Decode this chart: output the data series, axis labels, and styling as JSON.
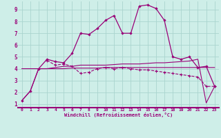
{
  "xlabel": "Windchill (Refroidissement éolien,°C)",
  "bg_color": "#ceeee8",
  "grid_color": "#aad4ce",
  "line_color": "#990077",
  "xlim": [
    -0.5,
    23.5
  ],
  "ylim": [
    0.7,
    9.7
  ],
  "xticks": [
    0,
    1,
    2,
    3,
    4,
    5,
    6,
    7,
    8,
    9,
    10,
    11,
    12,
    13,
    14,
    15,
    16,
    17,
    18,
    19,
    20,
    21,
    22,
    23
  ],
  "yticks": [
    1,
    2,
    3,
    4,
    5,
    6,
    7,
    8,
    9
  ],
  "curve_main_x": [
    0,
    1,
    2,
    3,
    4,
    5,
    6,
    7,
    8,
    9,
    10,
    11,
    12,
    13,
    14,
    15,
    16,
    17,
    18,
    19,
    20,
    21,
    22,
    23
  ],
  "curve_main_y": [
    1.3,
    2.1,
    4.0,
    4.8,
    4.6,
    4.5,
    5.3,
    7.0,
    6.9,
    7.4,
    8.1,
    8.5,
    7.0,
    7.0,
    9.3,
    9.4,
    9.1,
    8.1,
    5.0,
    4.8,
    5.0,
    4.1,
    4.2,
    2.5
  ],
  "curve_flat_x": [
    0,
    1,
    2,
    3,
    4,
    5,
    6,
    7,
    8,
    9,
    10,
    11,
    12,
    13,
    14,
    15,
    16,
    17,
    18,
    19,
    20,
    21,
    22,
    23
  ],
  "curve_flat_y": [
    4.0,
    4.0,
    4.0,
    4.0,
    4.0,
    4.0,
    4.05,
    4.05,
    4.05,
    4.05,
    4.1,
    4.1,
    4.1,
    4.1,
    4.1,
    4.1,
    4.1,
    4.1,
    4.1,
    4.1,
    4.1,
    4.1,
    4.1,
    4.1
  ],
  "curve_rise_x": [
    0,
    1,
    2,
    3,
    4,
    5,
    6,
    7,
    8,
    9,
    10,
    11,
    12,
    13,
    14,
    15,
    16,
    17,
    18,
    19,
    20,
    21,
    22,
    23
  ],
  "curve_rise_y": [
    1.3,
    2.1,
    4.0,
    4.0,
    4.1,
    4.2,
    4.2,
    4.3,
    4.3,
    4.3,
    4.3,
    4.35,
    4.4,
    4.4,
    4.4,
    4.45,
    4.5,
    4.5,
    4.55,
    4.6,
    4.65,
    4.8,
    1.1,
    2.5
  ],
  "curve_decline_x": [
    3,
    4,
    5,
    6,
    7,
    8,
    9,
    10,
    11,
    12,
    13,
    14,
    15,
    16,
    17,
    18,
    19,
    20,
    21,
    22,
    23
  ],
  "curve_decline_y": [
    4.7,
    4.3,
    4.4,
    4.2,
    3.6,
    3.7,
    4.0,
    4.1,
    4.0,
    4.1,
    4.0,
    3.9,
    3.9,
    3.8,
    3.7,
    3.6,
    3.5,
    3.4,
    3.3,
    2.5,
    2.5
  ]
}
